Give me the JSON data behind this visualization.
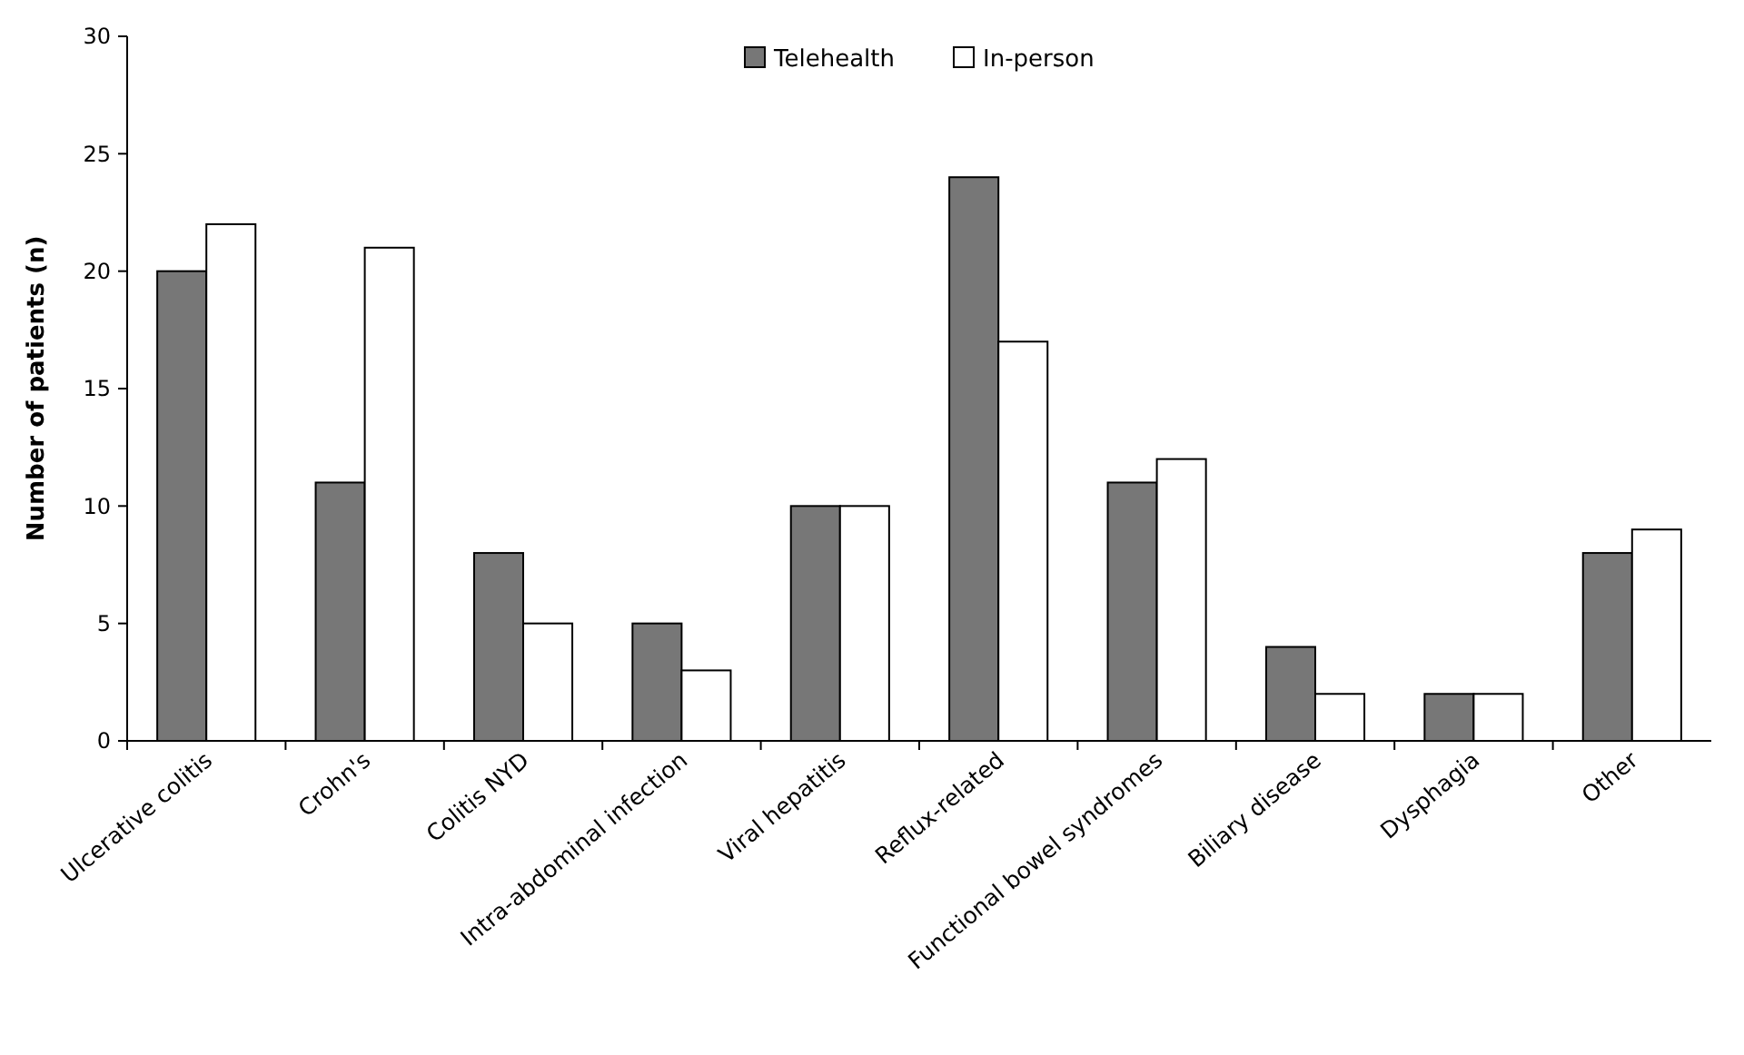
{
  "chart_data": {
    "type": "bar",
    "ylabel": "Number of patients (n)",
    "categories": [
      "Ulcerative colitis",
      "Crohn's",
      "Colitis NYD",
      "Intra-abdominal infection",
      "Viral hepatitis",
      "Reflux-related",
      "Functional bowel syndromes",
      "Biliary disease",
      "Dysphagia",
      "Other"
    ],
    "series": [
      {
        "name": "Telehealth",
        "color": "#777777",
        "values": [
          20,
          11,
          8,
          5,
          10,
          24,
          11,
          4,
          2,
          8
        ]
      },
      {
        "name": "In-person",
        "color": "#ffffff",
        "values": [
          22,
          21,
          5,
          3,
          10,
          17,
          12,
          2,
          2,
          9
        ]
      }
    ],
    "ylim": [
      0,
      30
    ],
    "yticks": [
      0,
      5,
      10,
      15,
      20,
      25,
      30
    ],
    "grid": false,
    "legend": "top"
  }
}
